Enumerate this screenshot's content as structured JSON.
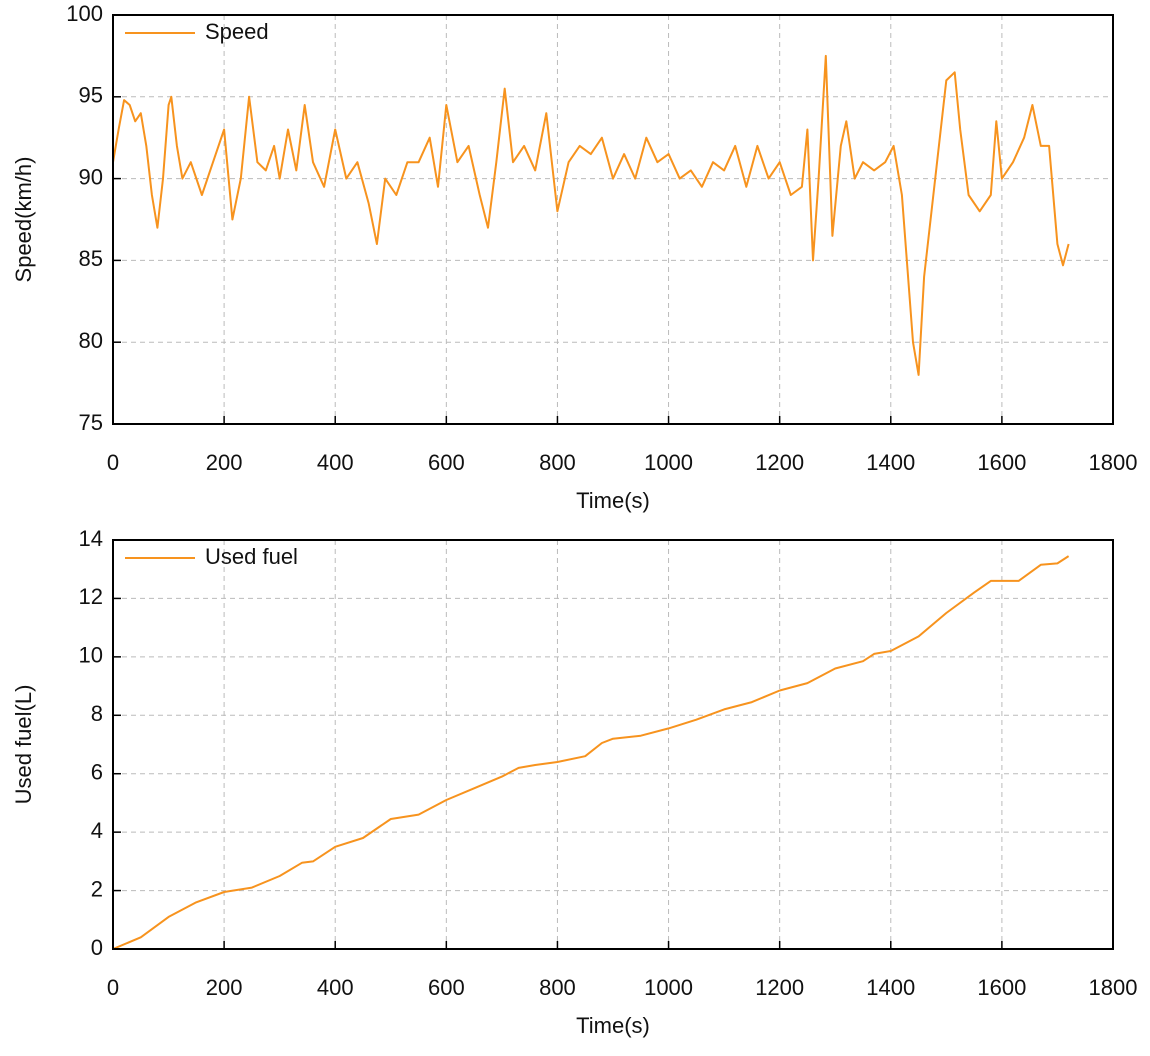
{
  "chart_data": [
    {
      "type": "line",
      "x_label": "Time(s)",
      "y_label": "Speed(km/h)",
      "x": [
        0,
        10,
        20,
        30,
        40,
        50,
        60,
        70,
        80,
        90,
        100,
        105,
        115,
        125,
        140,
        160,
        180,
        200,
        215,
        230,
        245,
        260,
        275,
        290,
        300,
        315,
        330,
        345,
        360,
        380,
        400,
        420,
        440,
        460,
        475,
        490,
        510,
        530,
        550,
        570,
        585,
        600,
        620,
        640,
        660,
        675,
        690,
        705,
        720,
        740,
        760,
        780,
        800,
        820,
        840,
        860,
        880,
        900,
        920,
        940,
        960,
        980,
        1000,
        1020,
        1040,
        1060,
        1080,
        1100,
        1120,
        1140,
        1160,
        1180,
        1200,
        1220,
        1240,
        1250,
        1260,
        1270,
        1283,
        1295,
        1310,
        1320,
        1335,
        1350,
        1370,
        1390,
        1405,
        1420,
        1440,
        1450,
        1460,
        1480,
        1500,
        1515,
        1525,
        1540,
        1560,
        1580,
        1590,
        1600,
        1620,
        1640,
        1655,
        1670,
        1685,
        1700,
        1710,
        1720
      ],
      "series": [
        {
          "name": "Speed",
          "color": "#f7931e",
          "values": [
            91,
            93,
            94.8,
            94.5,
            93.5,
            94,
            92,
            89,
            87,
            90,
            94.5,
            95,
            92,
            90,
            91,
            89,
            91,
            93,
            87.5,
            90,
            95,
            91,
            90.5,
            92,
            90,
            93,
            90.5,
            94.5,
            91,
            89.5,
            93,
            90,
            91,
            88.5,
            86,
            90,
            89,
            91,
            91,
            92.5,
            89.5,
            94.5,
            91,
            92,
            89,
            87,
            91,
            95.5,
            91,
            92,
            90.5,
            94,
            88,
            91,
            92,
            91.5,
            92.5,
            90,
            91.5,
            90,
            92.5,
            91,
            91.5,
            90,
            90.5,
            89.5,
            91,
            90.5,
            92,
            89.5,
            92,
            90,
            91,
            89,
            89.5,
            93,
            85,
            90,
            97.5,
            86.5,
            92,
            93.5,
            90,
            91,
            90.5,
            91,
            92,
            89,
            80,
            78,
            84,
            90,
            96,
            96.5,
            93,
            89,
            88,
            89,
            93.5,
            90,
            91,
            92.5,
            94.5,
            92,
            92,
            86,
            84.7,
            86
          ]
        }
      ],
      "legend": "upper left",
      "xlim": [
        0,
        1800
      ],
      "xticks": [
        0,
        200,
        400,
        600,
        800,
        1000,
        1200,
        1400,
        1600,
        1800
      ],
      "ylim": [
        75,
        100
      ],
      "yticks": [
        75,
        80,
        85,
        90,
        95,
        100
      ],
      "grid": true
    },
    {
      "type": "line",
      "x_label": "Time(s)",
      "y_label": "Used fuel(L)",
      "x": [
        0,
        50,
        100,
        150,
        200,
        250,
        300,
        340,
        360,
        400,
        450,
        500,
        550,
        600,
        650,
        700,
        730,
        760,
        800,
        850,
        880,
        900,
        950,
        1000,
        1050,
        1100,
        1150,
        1200,
        1250,
        1300,
        1350,
        1370,
        1400,
        1450,
        1500,
        1550,
        1580,
        1630,
        1670,
        1700,
        1720
      ],
      "series": [
        {
          "name": "Used fuel",
          "color": "#f7931e",
          "values": [
            0,
            0.4,
            1.1,
            1.6,
            1.95,
            2.1,
            2.5,
            2.95,
            3.0,
            3.5,
            3.8,
            4.45,
            4.6,
            5.1,
            5.5,
            5.9,
            6.2,
            6.3,
            6.4,
            6.6,
            7.05,
            7.2,
            7.3,
            7.55,
            7.85,
            8.2,
            8.45,
            8.85,
            9.1,
            9.6,
            9.85,
            10.1,
            10.2,
            10.7,
            11.5,
            12.2,
            12.6,
            12.6,
            13.15,
            13.2,
            13.45
          ]
        }
      ],
      "legend": "upper left",
      "xlim": [
        0,
        1800
      ],
      "xticks": [
        0,
        200,
        400,
        600,
        800,
        1000,
        1200,
        1400,
        1600,
        1800
      ],
      "ylim": [
        0,
        14
      ],
      "yticks": [
        0,
        2,
        4,
        6,
        8,
        10,
        12,
        14
      ],
      "grid": true
    }
  ]
}
